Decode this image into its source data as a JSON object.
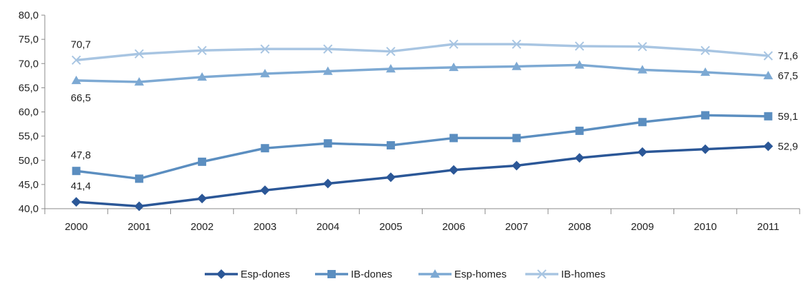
{
  "chart_data": {
    "type": "line",
    "categories": [
      "2000",
      "2001",
      "2002",
      "2003",
      "2004",
      "2005",
      "2006",
      "2007",
      "2008",
      "2009",
      "2010",
      "2011"
    ],
    "ylim": [
      40,
      80
    ],
    "yticks": [
      "40,0",
      "45,0",
      "50,0",
      "55,0",
      "60,0",
      "65,0",
      "70,0",
      "75,0",
      "80,0"
    ],
    "grid": false,
    "legend_position": "bottom",
    "series": [
      {
        "name": "Esp-dones",
        "color": "#2b5797",
        "marker": "diamond",
        "values": [
          41.4,
          40.5,
          42.1,
          43.8,
          45.2,
          46.5,
          48.0,
          48.9,
          50.5,
          51.7,
          52.3,
          52.9
        ],
        "labels": [
          {
            "index": 0,
            "text": "41,4"
          },
          {
            "index": 11,
            "text": "52,9"
          }
        ]
      },
      {
        "name": "IB-dones",
        "color": "#5b8ec0",
        "marker": "square",
        "values": [
          47.8,
          46.2,
          49.7,
          52.5,
          53.5,
          53.1,
          54.6,
          54.6,
          56.1,
          57.9,
          59.3,
          59.1
        ],
        "labels": [
          {
            "index": 0,
            "text": "47,8"
          },
          {
            "index": 11,
            "text": "59,1"
          }
        ]
      },
      {
        "name": "Esp-homes",
        "color": "#7da9d3",
        "marker": "triangle",
        "values": [
          66.5,
          66.2,
          67.2,
          67.9,
          68.4,
          68.9,
          69.2,
          69.4,
          69.7,
          68.7,
          68.2,
          67.5
        ],
        "labels": [
          {
            "index": 0,
            "text": "66,5"
          },
          {
            "index": 11,
            "text": "67,5"
          }
        ]
      },
      {
        "name": "IB-homes",
        "color": "#a8c5e2",
        "marker": "x",
        "values": [
          70.7,
          72.0,
          72.7,
          73.0,
          73.0,
          72.5,
          74.0,
          74.0,
          73.6,
          73.5,
          72.7,
          71.6
        ],
        "labels": [
          {
            "index": 0,
            "text": "70,7"
          },
          {
            "index": 11,
            "text": "71,6"
          }
        ]
      }
    ]
  }
}
